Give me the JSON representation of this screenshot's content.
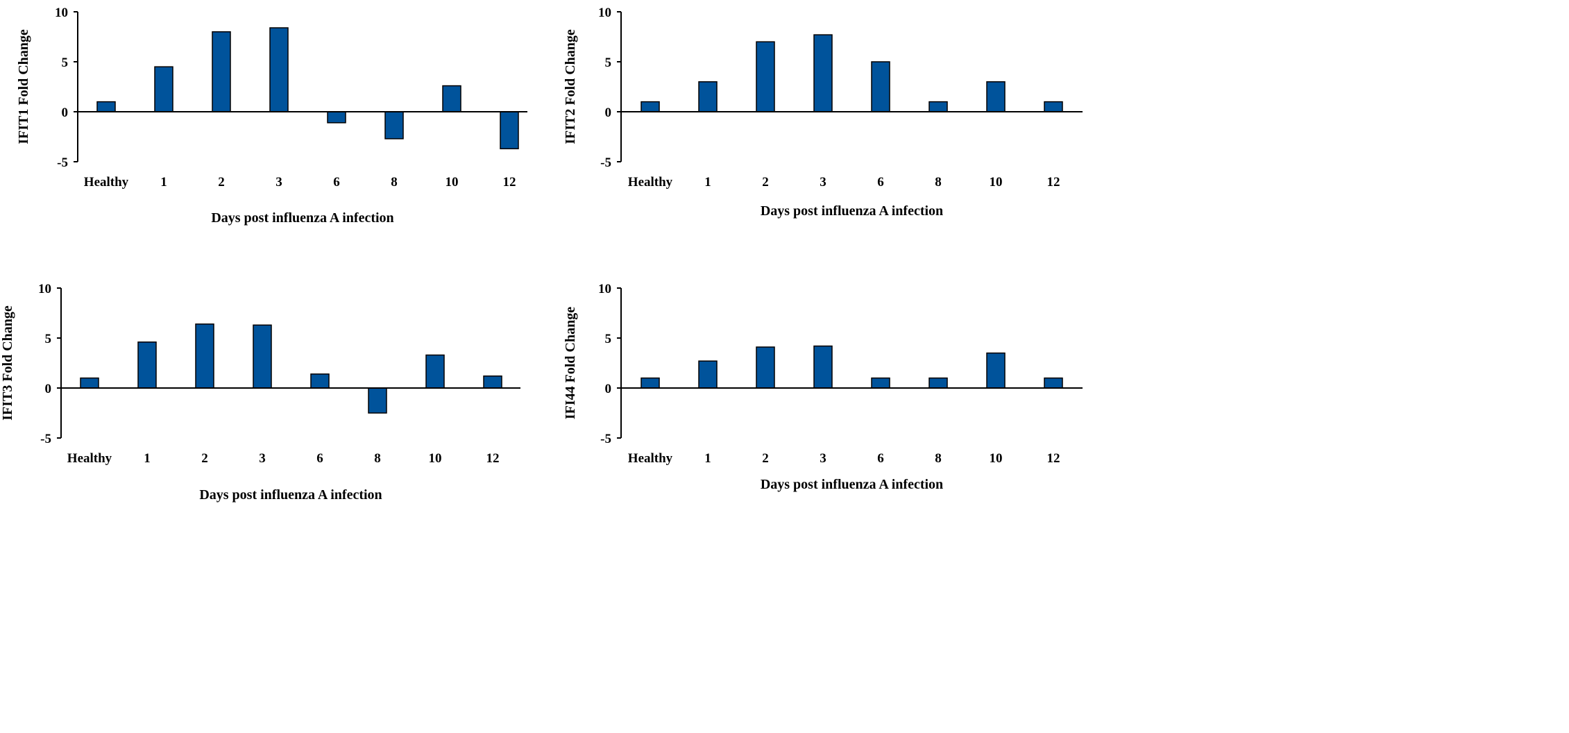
{
  "chart_data": [
    {
      "type": "bar",
      "categories": [
        "Healthy",
        "1",
        "2",
        "3",
        "6",
        "8",
        "10",
        "12"
      ],
      "values": [
        1.0,
        4.5,
        8.0,
        8.4,
        -1.1,
        -2.7,
        2.6,
        -3.7
      ],
      "xlabel": "Days post influenza A infection",
      "ylabel": "IFIT1 Fold Change",
      "ylim": [
        -5,
        10
      ],
      "yticks": [
        "10",
        "5",
        "0",
        "-5"
      ],
      "color": "#00539B"
    },
    {
      "type": "bar",
      "categories": [
        "Healthy",
        "1",
        "2",
        "3",
        "6",
        "8",
        "10",
        "12"
      ],
      "values": [
        1.0,
        3.0,
        7.0,
        7.7,
        5.0,
        1.0,
        3.0,
        1.0
      ],
      "xlabel": "Days post influenza A infection",
      "ylabel": "IFIT2 Fold Change",
      "ylim": [
        -5,
        10
      ],
      "yticks": [
        "10",
        "5",
        "0",
        "-5"
      ],
      "color": "#00539B"
    },
    {
      "type": "bar",
      "categories": [
        "Healthy",
        "1",
        "2",
        "3",
        "6",
        "8",
        "10",
        "12"
      ],
      "values": [
        1.0,
        4.6,
        6.4,
        6.3,
        1.4,
        -2.5,
        3.3,
        1.2
      ],
      "xlabel": "Days post influenza A infection",
      "ylabel": "IFIT3 Fold Change",
      "ylim": [
        -5,
        10
      ],
      "yticks": [
        "10",
        "5",
        "0",
        "-5"
      ],
      "color": "#00539B"
    },
    {
      "type": "bar",
      "categories": [
        "Healthy",
        "1",
        "2",
        "3",
        "6",
        "8",
        "10",
        "12"
      ],
      "values": [
        1.0,
        2.7,
        4.1,
        4.2,
        1.0,
        1.0,
        3.5,
        1.0
      ],
      "xlabel": "Days post influenza A infection",
      "ylabel": "IFI44 Fold Change",
      "ylim": [
        -5,
        10
      ],
      "yticks": [
        "10",
        "5",
        "0",
        "-5"
      ],
      "color": "#00539B"
    }
  ]
}
